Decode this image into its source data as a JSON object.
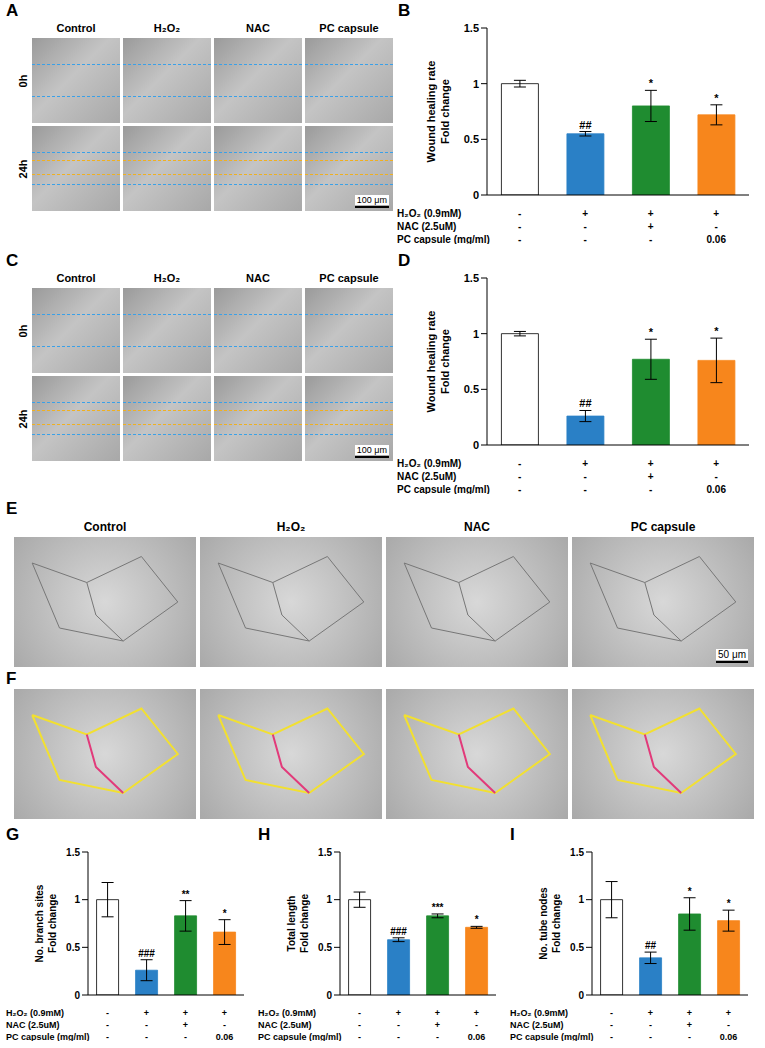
{
  "panels": {
    "A": {
      "letter": "A",
      "columns": [
        "Control",
        "H₂O₂",
        "NAC",
        "PC capsule"
      ],
      "rows": [
        "0h",
        "24h"
      ],
      "scale_bar": "100 μm"
    },
    "C": {
      "letter": "C",
      "columns": [
        "Control",
        "H₂O₂",
        "NAC",
        "PC capsule"
      ],
      "rows": [
        "0h",
        "24h"
      ],
      "scale_bar": "100 μm"
    },
    "E": {
      "letter": "E",
      "columns": [
        "Control",
        "H₂O₂",
        "NAC",
        "PC capsule"
      ],
      "scale_bar": "50 μm"
    },
    "F": {
      "letter": "F"
    }
  },
  "chart_data": [
    {
      "panel": "B",
      "type": "bar",
      "y_label": [
        "Wound healing rate",
        "Fold change"
      ],
      "categories": [
        null,
        null,
        null,
        null
      ],
      "values": [
        1.0,
        0.55,
        0.8,
        0.72
      ],
      "errors": [
        0.03,
        0.02,
        0.14,
        0.09
      ],
      "annotations": [
        null,
        "##",
        "*",
        "*"
      ],
      "colors": [
        "#ffffff",
        "#2a80c6",
        "#1f8c30",
        "#f7861c"
      ],
      "ylim": [
        0,
        1.5
      ],
      "yticks": [
        0,
        0.5,
        1,
        1.5
      ],
      "conditions": [
        {
          "label": "H₂O₂ (0.9mM)",
          "values": [
            "-",
            "+",
            "+",
            "+"
          ]
        },
        {
          "label": "NAC (2.5uM)",
          "values": [
            "-",
            "-",
            "+",
            "-"
          ]
        },
        {
          "label": "PC capsule (mg/ml)",
          "values": [
            "-",
            "-",
            "-",
            "0.06"
          ]
        }
      ]
    },
    {
      "panel": "D",
      "type": "bar",
      "y_label": [
        "Wound healing rate",
        "Fold change"
      ],
      "categories": [
        null,
        null,
        null,
        null
      ],
      "values": [
        1.0,
        0.26,
        0.77,
        0.76
      ],
      "errors": [
        0.02,
        0.05,
        0.18,
        0.2
      ],
      "annotations": [
        null,
        "##",
        "*",
        "*"
      ],
      "colors": [
        "#ffffff",
        "#2a80c6",
        "#1f8c30",
        "#f7861c"
      ],
      "ylim": [
        0,
        1.5
      ],
      "yticks": [
        0,
        0.5,
        1,
        1.5
      ],
      "conditions": [
        {
          "label": "H₂O₂ (0.9mM)",
          "values": [
            "-",
            "+",
            "+",
            "+"
          ]
        },
        {
          "label": "NAC (2.5uM)",
          "values": [
            "-",
            "-",
            "+",
            "-"
          ]
        },
        {
          "label": "PC capsule (mg/ml)",
          "values": [
            "-",
            "-",
            "-",
            "0.06"
          ]
        }
      ]
    },
    {
      "panel": "G",
      "type": "bar",
      "y_label": [
        "No. branch sites",
        "Fold change"
      ],
      "categories": [
        null,
        null,
        null,
        null
      ],
      "values": [
        1.0,
        0.26,
        0.83,
        0.66
      ],
      "errors": [
        0.18,
        0.11,
        0.16,
        0.13
      ],
      "annotations": [
        null,
        "###",
        "**",
        "*"
      ],
      "colors": [
        "#ffffff",
        "#2a80c6",
        "#1f8c30",
        "#f7861c"
      ],
      "ylim": [
        0,
        1.5
      ],
      "yticks": [
        0,
        0.5,
        1,
        1.5
      ],
      "conditions": [
        {
          "label": "H₂O₂ (0.9mM)",
          "values": [
            "-",
            "+",
            "+",
            "+"
          ]
        },
        {
          "label": "NAC (2.5uM)",
          "values": [
            "-",
            "-",
            "+",
            "-"
          ]
        },
        {
          "label": "PC capsule (mg/ml)",
          "values": [
            "-",
            "-",
            "-",
            "0.06"
          ]
        }
      ]
    },
    {
      "panel": "H",
      "type": "bar",
      "y_label": [
        "Total length",
        "Fold change"
      ],
      "categories": [
        null,
        null,
        null,
        null
      ],
      "values": [
        1.0,
        0.58,
        0.83,
        0.71
      ],
      "errors": [
        0.08,
        0.02,
        0.02,
        0.01
      ],
      "annotations": [
        null,
        "###",
        "***",
        "*"
      ],
      "colors": [
        "#ffffff",
        "#2a80c6",
        "#1f8c30",
        "#f7861c"
      ],
      "ylim": [
        0,
        1.5
      ],
      "yticks": [
        0,
        0.5,
        1,
        1.5
      ],
      "conditions": [
        {
          "label": "H₂O₂ (0.9mM)",
          "values": [
            "-",
            "+",
            "+",
            "+"
          ]
        },
        {
          "label": "NAC (2.5uM)",
          "values": [
            "-",
            "-",
            "+",
            "-"
          ]
        },
        {
          "label": "PC capsule (mg/ml)",
          "values": [
            "-",
            "-",
            "-",
            "0.06"
          ]
        }
      ]
    },
    {
      "panel": "I",
      "type": "bar",
      "y_label": [
        "No. tube nodes",
        "Fold change"
      ],
      "categories": [
        null,
        null,
        null,
        null
      ],
      "values": [
        1.0,
        0.39,
        0.85,
        0.78
      ],
      "errors": [
        0.19,
        0.06,
        0.17,
        0.11
      ],
      "annotations": [
        null,
        "##",
        "*",
        "*"
      ],
      "colors": [
        "#ffffff",
        "#2a80c6",
        "#1f8c30",
        "#f7861c"
      ],
      "ylim": [
        0,
        1.5
      ],
      "yticks": [
        0,
        0.5,
        1,
        1.5
      ],
      "conditions": [
        {
          "label": "H₂O₂ (0.9mM)",
          "values": [
            "-",
            "+",
            "+",
            "+"
          ]
        },
        {
          "label": "NAC (2.5uM)",
          "values": [
            "-",
            "-",
            "+",
            "-"
          ]
        },
        {
          "label": "PC capsule (mg/ml)",
          "values": [
            "-",
            "-",
            "-",
            "0.06"
          ]
        }
      ]
    }
  ]
}
